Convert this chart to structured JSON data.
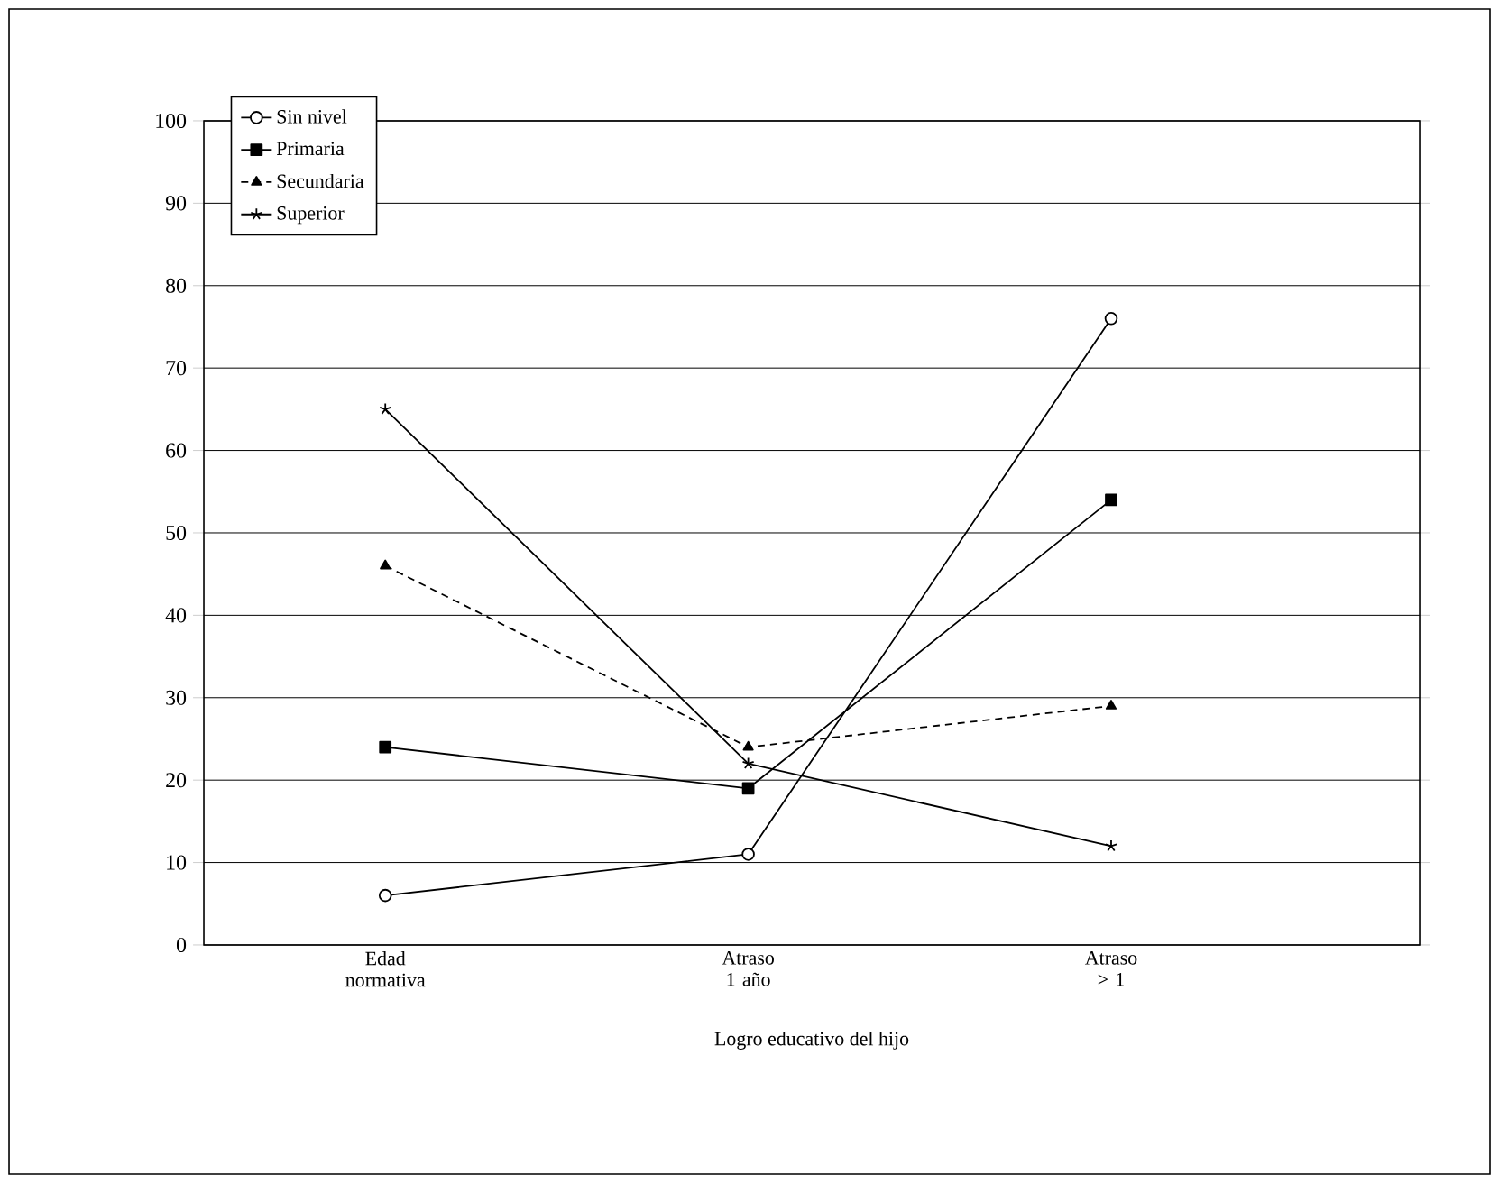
{
  "chart_data": {
    "type": "line",
    "xlabel": "Logro educativo del hijo",
    "categories": [
      "Edad normativa",
      "Atraso 1 año",
      "Atraso > 1"
    ],
    "ylim": [
      0,
      100
    ],
    "yticks": [
      0,
      10,
      20,
      30,
      40,
      50,
      60,
      70,
      80,
      90,
      100
    ],
    "grid": "y",
    "legend": "top left",
    "series": [
      {
        "name": "Sin nivel",
        "color": "#000000",
        "marker": "circle",
        "line_style": "solid",
        "values": [
          6,
          11,
          76
        ]
      },
      {
        "name": "Primaria",
        "color": "#000000",
        "marker": "square",
        "line_style": "solid",
        "values": [
          24,
          19,
          54
        ]
      },
      {
        "name": "Secundaria",
        "color": "#000000",
        "marker": "triangle",
        "line_style": "dashed",
        "values": [
          46,
          24,
          29
        ]
      },
      {
        "name": "Superior",
        "color": "#000000",
        "marker": "cross",
        "line_style": "solid",
        "values": [
          65,
          22,
          12
        ]
      }
    ]
  }
}
